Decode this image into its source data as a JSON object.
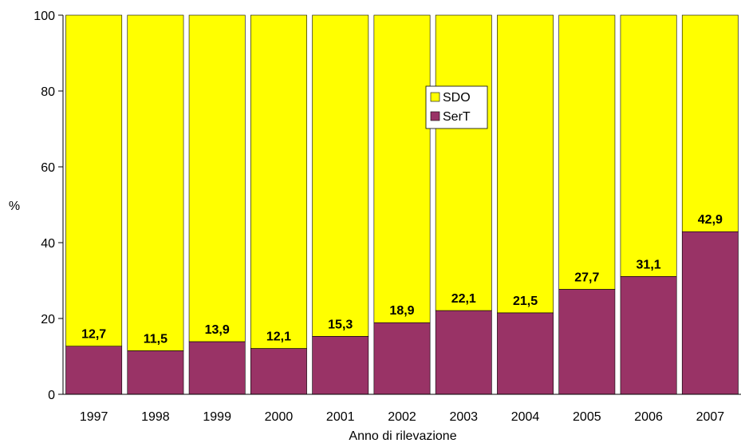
{
  "chart_data": {
    "type": "bar",
    "stacked": true,
    "percent_stacked": true,
    "categories": [
      "1997",
      "1998",
      "1999",
      "2000",
      "2001",
      "2002",
      "2003",
      "2004",
      "2005",
      "2006",
      "2007"
    ],
    "series": [
      {
        "name": "SerT",
        "values": [
          12.7,
          11.5,
          13.9,
          12.1,
          15.3,
          18.9,
          22.1,
          21.5,
          27.7,
          31.1,
          42.9
        ],
        "color": "#993366"
      },
      {
        "name": "SDO",
        "values": [
          87.3,
          88.5,
          86.1,
          87.9,
          84.7,
          81.1,
          77.9,
          78.5,
          72.3,
          68.9,
          57.1
        ],
        "color": "#FFFF00"
      }
    ],
    "data_labels": [
      "12,7",
      "11,5",
      "13,9",
      "12,1",
      "15,3",
      "18,9",
      "22,1",
      "21,5",
      "27,7",
      "31,1",
      "42,9"
    ],
    "xlabel": "Anno di rilevazione",
    "ylabel": "%",
    "ylim": [
      0,
      100
    ],
    "yticks": [
      0,
      20,
      40,
      60,
      80,
      100
    ],
    "grid": false,
    "legend": {
      "placement": "center-top",
      "entries": [
        "SDO",
        "SerT"
      ]
    }
  }
}
